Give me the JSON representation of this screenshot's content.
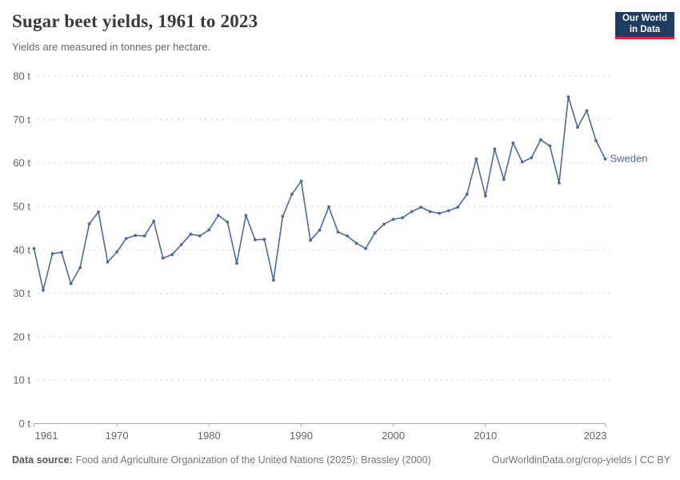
{
  "header": {
    "title": "Sugar beet yields, 1961 to 2023",
    "subtitle": "Yields are measured in tonnes per hectare.",
    "logo": {
      "line1": "Our World",
      "line2": "in Data",
      "bg_color": "#1d3d63",
      "accent_color": "#e0262c"
    }
  },
  "chart_data": {
    "type": "line",
    "title": "Sugar beet yields, 1961 to 2023",
    "subtitle": "Yields are measured in tonnes per hectare.",
    "unit": "t",
    "xlabel": "",
    "ylabel": "tonnes per hectare",
    "xlim": [
      1961,
      2023
    ],
    "ylim": [
      0,
      80
    ],
    "grid": "horizontal-dashed",
    "legend_position": "end-of-line-label",
    "x_ticks": [
      1961,
      1970,
      1980,
      1990,
      2000,
      2010,
      2023
    ],
    "y_ticks": [
      0,
      10,
      20,
      30,
      40,
      50,
      60,
      70,
      80
    ],
    "series": [
      {
        "name": "Sweden",
        "color": "#4c6a9c",
        "x": [
          1961,
          1962,
          1963,
          1964,
          1965,
          1966,
          1967,
          1968,
          1969,
          1970,
          1971,
          1972,
          1973,
          1974,
          1975,
          1976,
          1977,
          1978,
          1979,
          1980,
          1981,
          1982,
          1983,
          1984,
          1985,
          1986,
          1987,
          1988,
          1989,
          1990,
          1991,
          1992,
          1993,
          1994,
          1995,
          1996,
          1997,
          1998,
          1999,
          2000,
          2001,
          2002,
          2003,
          2004,
          2005,
          2006,
          2007,
          2008,
          2009,
          2010,
          2011,
          2012,
          2013,
          2014,
          2015,
          2016,
          2017,
          2018,
          2019,
          2020,
          2021,
          2022,
          2023
        ],
        "values": [
          40.3,
          30.7,
          39.1,
          39.4,
          32.2,
          35.9,
          46.0,
          48.7,
          37.2,
          39.5,
          42.6,
          43.3,
          43.2,
          46.6,
          38.1,
          38.9,
          41.2,
          43.6,
          43.2,
          44.6,
          47.9,
          46.4,
          36.9,
          47.9,
          42.3,
          42.4,
          33.0,
          47.7,
          52.8,
          55.8,
          42.2,
          44.5,
          49.9,
          44.1,
          43.2,
          41.5,
          40.3,
          43.9,
          45.9,
          47.0,
          47.4,
          48.8,
          49.8,
          48.8,
          48.4,
          49.0,
          49.8,
          52.8,
          60.9,
          52.4,
          63.2,
          56.2,
          64.6,
          60.2,
          61.2,
          65.3,
          63.9,
          55.4,
          75.2,
          68.2,
          72.0,
          65.1,
          60.9
        ]
      }
    ]
  },
  "footer": {
    "source_label": "Data source:",
    "source_text": "Food and Agriculture Organization of the United Nations (2025); Brassley (2000)",
    "link_text": "OurWorldinData.org/crop-yields | CC BY"
  }
}
